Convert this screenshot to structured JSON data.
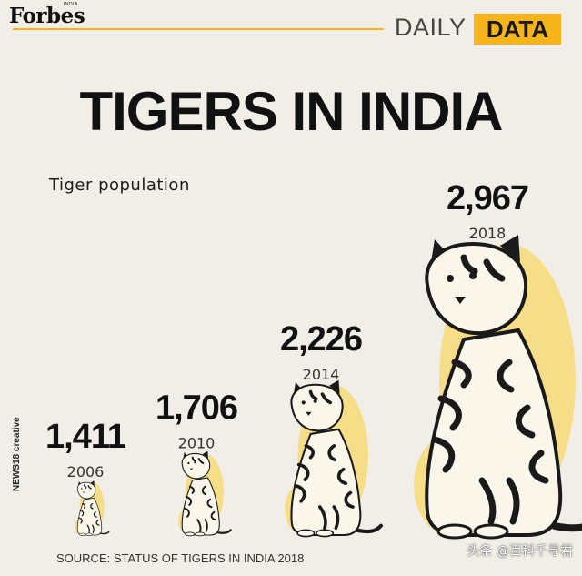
{
  "header": {
    "brand": "Forbes",
    "brand_edition": "INDIA",
    "daily_label": "DAILY",
    "data_label": "DATA"
  },
  "colors": {
    "accent": "#f4b41a",
    "tiger_fill": "#f6dc7e",
    "ink": "#1a1a1a"
  },
  "headline": "TIGERS IN INDIA",
  "credit": "NEWS18 creative",
  "source": "SOURCE: STATUS OF TIGERS IN INDIA 2018",
  "watermark": "头条 @百科千寻君",
  "chart_data": {
    "type": "bar",
    "title": "Tiger population",
    "categories": [
      "2006",
      "2010",
      "2014",
      "2018"
    ],
    "values": [
      1411,
      1706,
      2226,
      2967
    ],
    "value_labels": [
      "1,411",
      "1,706",
      "2,226",
      "2,967"
    ],
    "mark": "tiger-illustration",
    "grid": false,
    "legend": "none"
  }
}
